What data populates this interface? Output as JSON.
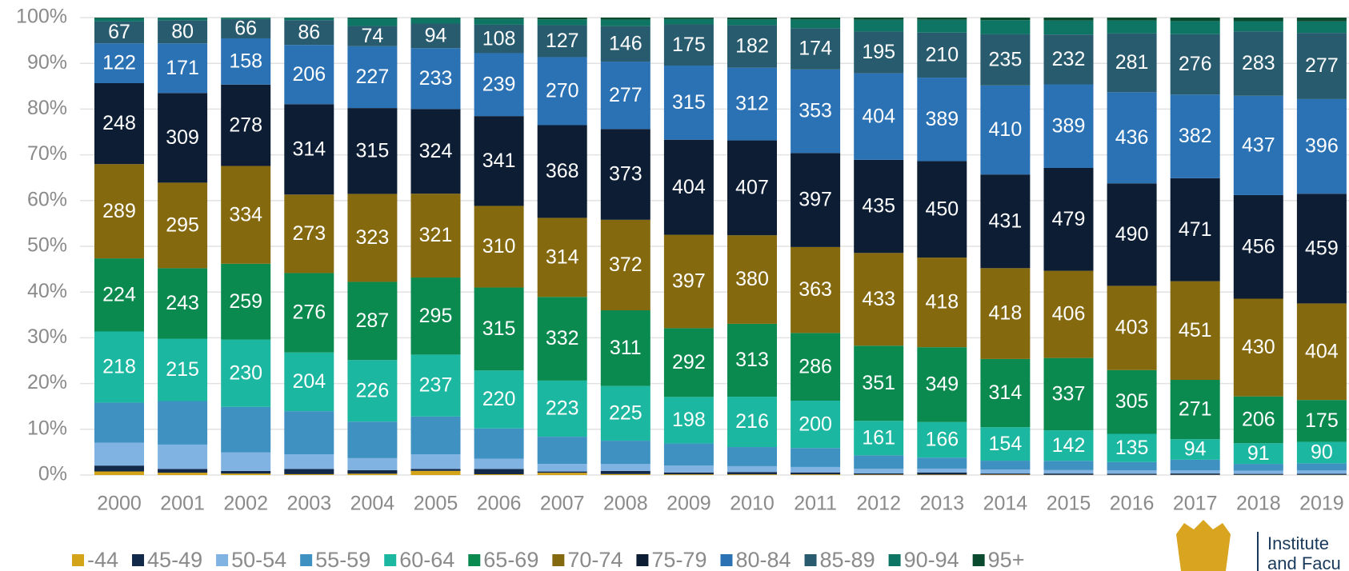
{
  "chart_data": {
    "type": "bar",
    "stacked": "percent",
    "grid": true,
    "legend": "bottom",
    "categories": [
      "2000",
      "2001",
      "2002",
      "2003",
      "2004",
      "2005",
      "2006",
      "2007",
      "2008",
      "2009",
      "2010",
      "2011",
      "2012",
      "2013",
      "2014",
      "2015",
      "2016",
      "2017",
      "2018",
      "2019"
    ],
    "ylim": [
      0,
      100
    ],
    "yticks": [
      {
        "value": 0,
        "label": "0%"
      },
      {
        "value": 10,
        "label": "10%"
      },
      {
        "value": 20,
        "label": "20%"
      },
      {
        "value": 30,
        "label": "30%"
      },
      {
        "value": 40,
        "label": "40%"
      },
      {
        "value": 50,
        "label": "50%"
      },
      {
        "value": 60,
        "label": "60%"
      },
      {
        "value": 70,
        "label": "70%"
      },
      {
        "value": 80,
        "label": "80%"
      },
      {
        "value": 90,
        "label": "90%"
      },
      {
        "value": 100,
        "label": "100%"
      }
    ],
    "series": [
      {
        "name": "-44",
        "color": "#d4a418",
        "data_labels": false,
        "values": [
          11,
          8,
          5,
          3,
          5,
          16,
          3,
          9,
          4,
          3,
          3,
          3,
          2,
          2,
          2,
          1,
          1,
          1,
          1,
          1
        ]
      },
      {
        "name": "45-49",
        "color": "#12294a",
        "data_labels": false,
        "values": [
          18,
          13,
          9,
          18,
          13,
          7,
          20,
          5,
          13,
          8,
          10,
          8,
          6,
          10,
          5,
          6,
          5,
          6,
          4,
          4
        ]
      },
      {
        "name": "50-54",
        "color": "#80b3e2",
        "data_labels": false,
        "values": [
          70,
          84,
          63,
          51,
          44,
          56,
          39,
          30,
          28,
          29,
          25,
          23,
          21,
          18,
          18,
          16,
          16,
          15,
          14,
          14
        ]
      },
      {
        "name": "55-59",
        "color": "#3f91c1",
        "data_labels": false,
        "values": [
          123,
          150,
          156,
          150,
          134,
          145,
          115,
          108,
          96,
          94,
          82,
          80,
          63,
          51,
          41,
          43,
          40,
          48,
          30,
          30
        ]
      },
      {
        "name": "60-64",
        "color": "#1bb7a1",
        "data_labels": true,
        "values": [
          218,
          215,
          230,
          204,
          226,
          237,
          220,
          223,
          225,
          198,
          216,
          200,
          161,
          166,
          154,
          142,
          135,
          94,
          91,
          90
        ]
      },
      {
        "name": "65-69",
        "color": "#0a8a4f",
        "data_labels": true,
        "values": [
          224,
          243,
          259,
          276,
          287,
          295,
          315,
          332,
          311,
          292,
          313,
          286,
          351,
          349,
          314,
          337,
          305,
          271,
          206,
          175
        ]
      },
      {
        "name": "70-74",
        "color": "#85690f",
        "data_labels": true,
        "values": [
          289,
          295,
          334,
          273,
          323,
          321,
          310,
          314,
          372,
          397,
          380,
          363,
          433,
          418,
          418,
          406,
          403,
          451,
          430,
          404
        ]
      },
      {
        "name": "75-79",
        "color": "#0c1d34",
        "data_labels": true,
        "values": [
          248,
          309,
          278,
          314,
          315,
          324,
          341,
          368,
          373,
          404,
          407,
          397,
          435,
          450,
          431,
          479,
          490,
          471,
          456,
          459
        ]
      },
      {
        "name": "80-84",
        "color": "#2b72b5",
        "data_labels": true,
        "values": [
          122,
          171,
          158,
          206,
          227,
          233,
          239,
          270,
          277,
          315,
          312,
          353,
          404,
          389,
          410,
          389,
          436,
          382,
          437,
          396
        ]
      },
      {
        "name": "85-89",
        "color": "#295b6f",
        "data_labels": true,
        "values": [
          67,
          80,
          66,
          86,
          74,
          94,
          108,
          127,
          146,
          175,
          182,
          174,
          195,
          210,
          235,
          232,
          281,
          276,
          283,
          277
        ]
      },
      {
        "name": "90-94",
        "color": "#0e7463",
        "data_labels": false,
        "values": [
          10,
          8,
          4,
          8,
          28,
          21,
          23,
          23,
          27,
          23,
          25,
          37,
          55,
          60,
          65,
          65,
          62,
          60,
          45,
          48
        ]
      },
      {
        "name": "95+",
        "color": "#0a4a2e",
        "data_labels": false,
        "values": [
          2,
          1,
          1,
          1,
          3,
          2,
          4,
          7,
          8,
          6,
          8,
          8,
          10,
          10,
          12,
          14,
          14,
          16,
          16,
          16
        ]
      }
    ]
  },
  "logo": {
    "line1": "Institute",
    "line2": "and Facu"
  }
}
